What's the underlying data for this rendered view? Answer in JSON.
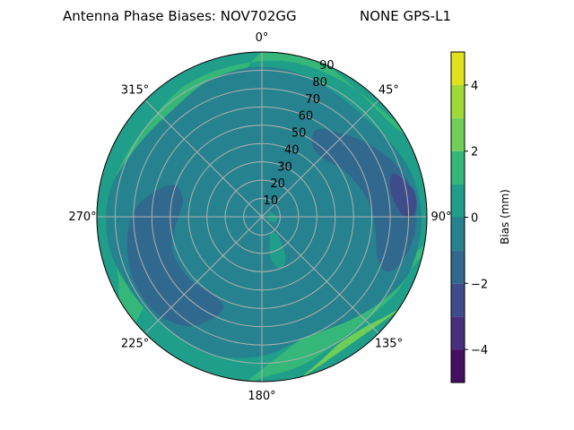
{
  "chart_data": {
    "type": "contour-polar",
    "title_left": "Antenna Phase Biases: NOV702GG",
    "title_right": "NONE GPS-L1",
    "theta_direction": "clockwise",
    "theta_zero": "north",
    "theta_ticks": [
      "0°",
      "45°",
      "90°",
      "135°",
      "180°",
      "225°",
      "270°",
      "315°"
    ],
    "r_ticks": [
      "10",
      "20",
      "30",
      "40",
      "50",
      "60",
      "70",
      "80",
      "90"
    ],
    "r_range": [
      0,
      90
    ],
    "grid": true,
    "colorbar": {
      "label": "Bias (mm)",
      "range": [
        -5,
        5
      ],
      "levels": [
        -5,
        -4,
        -3,
        -2,
        -1,
        0,
        1,
        2,
        3,
        4,
        5
      ],
      "colors": [
        "#440f5e",
        "#482f7c",
        "#3e4c8a",
        "#31688e",
        "#26828e",
        "#1f9e89",
        "#35b779",
        "#6ece58",
        "#a0da39",
        "#e0e21b"
      ],
      "ticks": [
        "−4",
        "−2",
        "0",
        "2",
        "4"
      ]
    },
    "background_band": [
      0,
      1
    ],
    "regions": [
      {
        "band": [
          1,
          2
        ],
        "points": [
          [
            230,
            90
          ],
          [
            250,
            84
          ],
          [
            270,
            85
          ],
          [
            290,
            82
          ],
          [
            310,
            80
          ],
          [
            330,
            83
          ],
          [
            350,
            84
          ],
          [
            10,
            86
          ],
          [
            30,
            86
          ],
          [
            50,
            88
          ],
          [
            60,
            90
          ],
          [
            0,
            90
          ]
        ]
      },
      {
        "band": [
          1,
          2
        ],
        "points": [
          [
            100,
            90
          ],
          [
            110,
            86
          ],
          [
            120,
            84
          ],
          [
            135,
            80
          ],
          [
            150,
            80
          ],
          [
            165,
            84
          ],
          [
            180,
            88
          ],
          [
            185,
            90
          ]
        ]
      },
      {
        "band": [
          -1,
          0
        ],
        "points": [
          [
            0,
            82
          ],
          [
            20,
            80
          ],
          [
            45,
            78
          ],
          [
            70,
            84
          ],
          [
            90,
            87
          ],
          [
            110,
            86
          ],
          [
            125,
            80
          ],
          [
            140,
            74
          ],
          [
            160,
            70
          ],
          [
            180,
            76
          ],
          [
            200,
            80
          ],
          [
            220,
            80
          ],
          [
            240,
            82
          ],
          [
            260,
            85
          ],
          [
            280,
            84
          ],
          [
            300,
            78
          ],
          [
            320,
            76
          ],
          [
            340,
            80
          ]
        ]
      },
      {
        "band": [
          -2,
          -1
        ],
        "points": [
          [
            32,
            56
          ],
          [
            42,
            62
          ],
          [
            55,
            70
          ],
          [
            68,
            78
          ],
          [
            80,
            83
          ],
          [
            95,
            84
          ],
          [
            108,
            80
          ],
          [
            114,
            74
          ],
          [
            108,
            66
          ],
          [
            95,
            62
          ],
          [
            80,
            58
          ],
          [
            62,
            52
          ],
          [
            45,
            46
          ],
          [
            35,
            48
          ]
        ]
      },
      {
        "band": [
          -2,
          -1
        ],
        "points": [
          [
            285,
            58
          ],
          [
            275,
            68
          ],
          [
            262,
            74
          ],
          [
            245,
            78
          ],
          [
            228,
            78
          ],
          [
            214,
            72
          ],
          [
            206,
            62
          ],
          [
            203,
            54
          ],
          [
            212,
            50
          ],
          [
            230,
            52
          ],
          [
            250,
            52
          ],
          [
            268,
            46
          ],
          [
            282,
            44
          ],
          [
            290,
            50
          ]
        ]
      },
      {
        "band": [
          -3,
          -2
        ],
        "points": [
          [
            72,
            76
          ],
          [
            80,
            84
          ],
          [
            88,
            84
          ],
          [
            90,
            78
          ],
          [
            84,
            73
          ],
          [
            76,
            72
          ]
        ]
      },
      {
        "band": [
          0,
          1
        ],
        "points": [
          [
            140,
            14
          ],
          [
            150,
            26
          ],
          [
            160,
            30
          ],
          [
            168,
            24
          ],
          [
            162,
            14
          ],
          [
            150,
            10
          ]
        ]
      },
      {
        "band": [
          0,
          1
        ],
        "points": [
          [
            60,
            5
          ],
          [
            90,
            8
          ],
          [
            110,
            8
          ],
          [
            120,
            4
          ]
        ]
      },
      {
        "band": [
          2,
          3
        ],
        "points": [
          [
            125,
            90
          ],
          [
            130,
            86
          ],
          [
            138,
            82
          ],
          [
            148,
            81
          ],
          [
            158,
            85
          ],
          [
            165,
            90
          ]
        ]
      }
    ]
  }
}
